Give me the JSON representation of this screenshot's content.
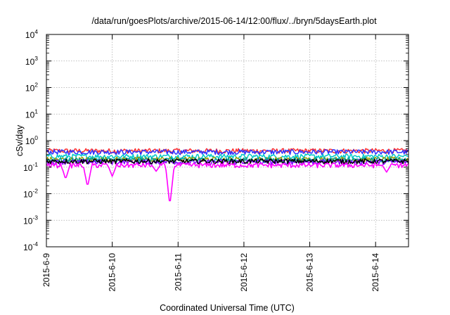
{
  "chart_data": {
    "type": "line",
    "title": "/data/run/goesPlots/archive/2015-06-14/12:00/flux/../bryn/5daysEarth.plot",
    "xlabel": "Coordinated Universal Time (UTC)",
    "ylabel": "cSv/day",
    "yscale": "log",
    "ylim": [
      0.0001,
      10000
    ],
    "xlim": [
      "2015-06-09T00:00",
      "2015-06-14T12:00"
    ],
    "grid": true,
    "x_ticks": [
      "2015-6-9",
      "2015-6-10",
      "2015-6-11",
      "2015-6-12",
      "2015-6-13",
      "2015-6-14"
    ],
    "y_ticks": [
      {
        "base": "10",
        "exp": "-4"
      },
      {
        "base": "10",
        "exp": "-3"
      },
      {
        "base": "10",
        "exp": "-2"
      },
      {
        "base": "10",
        "exp": "-1"
      },
      {
        "base": "10",
        "exp": "0"
      },
      {
        "base": "10",
        "exp": "1"
      },
      {
        "base": "10",
        "exp": "2"
      },
      {
        "base": "10",
        "exp": "3"
      },
      {
        "base": "10",
        "exp": "4"
      }
    ],
    "series": [
      {
        "color": "#ff3030",
        "level": 0.42,
        "dips": []
      },
      {
        "color": "#3030ff",
        "level": 0.38,
        "dips": []
      },
      {
        "color": "#00c8c8",
        "level": 0.26,
        "dips": []
      },
      {
        "color": "#a0a000",
        "level": 0.2,
        "dips": []
      },
      {
        "color": "#00a0a0",
        "level": 0.19,
        "dips": []
      },
      {
        "color": "#8000ff",
        "level": 0.16,
        "dips": []
      },
      {
        "color": "#000000",
        "level": 0.17,
        "dips": []
      },
      {
        "color": "#ff00ff",
        "level": 0.12,
        "dips": [
          {
            "t": "2015-06-09T07:00",
            "value": 0.035
          },
          {
            "t": "2015-06-09T15:00",
            "value": 0.018
          },
          {
            "t": "2015-06-10T00:00",
            "value": 0.045
          },
          {
            "t": "2015-06-10T16:00",
            "value": 0.07
          },
          {
            "t": "2015-06-10T21:00",
            "value": 0.0035
          },
          {
            "t": "2015-06-14T04:00",
            "value": 0.065
          }
        ]
      }
    ]
  }
}
